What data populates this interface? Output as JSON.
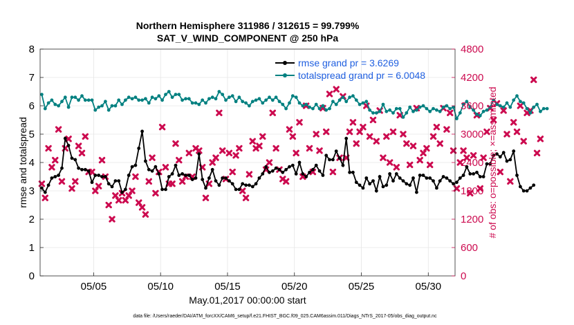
{
  "chart_data": {
    "type": "line",
    "title": "Northern Hemisphere 311986 / 312615 = 99.799%",
    "subtitle": "SAT_V_WIND_COMPONENT @ 250 hPa",
    "xlabel": "May.01,2017 00:00:00 start",
    "ylabel": "rmse and totalspread",
    "ylabel_right": "# of obs: o=possible; ×=assimilated",
    "ylim": [
      0,
      8
    ],
    "ylim_right": [
      0,
      4800
    ],
    "xlim": [
      1,
      32
    ],
    "x_ticks": [
      5,
      10,
      15,
      20,
      25,
      30
    ],
    "x_tick_labels": [
      "05/05",
      "05/10",
      "05/15",
      "05/20",
      "05/25",
      "05/30"
    ],
    "y_ticks": [
      0,
      1,
      2,
      3,
      4,
      5,
      6,
      7,
      8
    ],
    "y_ticks_right": [
      0,
      600,
      1200,
      1800,
      2400,
      3000,
      3600,
      4200,
      4800
    ],
    "grid": true,
    "legend_position": "top-right",
    "series": [
      {
        "name": "rmse grand pr = 3.6269",
        "color": "#000000",
        "axis": "left",
        "x0": 1.125,
        "dx": 0.25,
        "values": [
          3.1,
          2.95,
          3.2,
          3.45,
          3.5,
          3.55,
          3.8,
          4.85,
          4.6,
          4.15,
          4.1,
          3.8,
          3.75,
          3.75,
          3.7,
          3.3,
          3.55,
          3.55,
          3.5,
          3.5,
          3.25,
          3.15,
          3.35,
          3.35,
          2.95,
          3.05,
          3.55,
          3.85,
          3.9,
          4.5,
          5.1,
          4.05,
          3.75,
          3.7,
          3.85,
          3.6,
          3.05,
          3.05,
          3.5,
          3.6,
          3.9,
          3.55,
          3.6,
          3.55,
          3.55,
          3.4,
          3.45,
          4.3,
          3.4,
          3.1,
          3.45,
          3.75,
          3.35,
          3.2,
          3.45,
          3.45,
          3.35,
          3.25,
          3.05,
          3.05,
          3.25,
          3.2,
          3.2,
          3.15,
          3.25,
          3.45,
          3.6,
          3.85,
          3.65,
          3.7,
          3.8,
          3.75,
          3.65,
          3.75,
          3.85,
          3.9,
          3.6,
          4.0,
          3.6,
          3.5,
          3.65,
          3.75,
          3.9,
          3.7,
          3.55,
          4.25,
          4.1,
          4.1,
          4.4,
          4.15,
          3.9,
          4.85,
          3.65,
          3.65,
          3.3,
          3.2,
          3.1,
          3.45,
          3.25,
          3.35,
          3.0,
          3.5,
          3.15,
          3.2,
          3.6,
          3.35,
          3.6,
          3.45,
          3.35,
          3.25,
          3.2,
          3.45,
          2.95,
          3.55,
          3.55,
          3.45,
          3.45,
          3.35,
          3.1,
          3.35,
          3.5,
          3.45,
          3.35,
          3.25,
          3.3,
          3.45,
          3.55,
          3.85,
          3.6,
          3.6,
          3.65,
          3.5,
          3.5,
          3.95,
          3.95,
          4.25,
          4.3,
          4.2,
          4.35,
          4.05,
          4.1,
          4.4,
          3.55,
          3.15,
          3.0,
          3.0,
          3.1,
          3.2
        ]
      },
      {
        "name": "totalspread grand pr = 6.0048",
        "color": "#008080",
        "axis": "left",
        "x0": 1.125,
        "dx": 0.25,
        "values": [
          6.4,
          5.9,
          6.1,
          6.2,
          6.05,
          6.0,
          6.15,
          6.3,
          5.95,
          6.3,
          6.3,
          6.2,
          6.35,
          6.2,
          6.2,
          6.2,
          5.85,
          5.95,
          6.0,
          6.15,
          5.85,
          6.0,
          6.0,
          6.2,
          6.05,
          6.2,
          6.3,
          6.25,
          6.3,
          6.2,
          6.2,
          6.25,
          6.1,
          6.3,
          6.25,
          6.35,
          6.2,
          6.4,
          6.5,
          6.3,
          6.4,
          6.4,
          6.2,
          6.25,
          6.25,
          6.1,
          6.1,
          6.05,
          6.2,
          6.1,
          6.25,
          6.3,
          6.25,
          6.5,
          6.4,
          6.2,
          6.3,
          6.35,
          6.15,
          6.3,
          6.15,
          6.1,
          6.0,
          6.15,
          6.2,
          6.25,
          6.1,
          6.2,
          6.3,
          6.2,
          6.3,
          6.15,
          6.05,
          5.9,
          6.1,
          6.35,
          6.3,
          6.1,
          6.0,
          6.05,
          5.95,
          5.9,
          6.05,
          5.9,
          6.0,
          5.85,
          5.9,
          6.15,
          6.05,
          6.2,
          6.3,
          6.15,
          6.3,
          6.35,
          6.2,
          6.05,
          6.1,
          6.15,
          5.85,
          5.75,
          5.75,
          5.8,
          6.05,
          5.8,
          5.85,
          5.75,
          5.9,
          5.9,
          5.6,
          5.75,
          5.95,
          5.8,
          5.85,
          5.95,
          6.0,
          5.9,
          5.8,
          5.9,
          5.85,
          5.8,
          5.95,
          6.0,
          5.9,
          5.95,
          5.55,
          5.75,
          6.05,
          6.15,
          5.95,
          5.85,
          5.7,
          5.65,
          5.8,
          5.85,
          5.95,
          6.2,
          6.05,
          6.0,
          5.95,
          6.1,
          5.95,
          6.2,
          6.35,
          6.15,
          6.1,
          5.9,
          5.75,
          5.95,
          6.05,
          5.8,
          5.9,
          5.9
        ]
      },
      {
        "name": "obs possible / assimilated",
        "color": "#cc0a4f",
        "axis": "right",
        "marker": "cross",
        "x0": 1.125,
        "dx": 0.25,
        "values": [
          1950,
          1650,
          2700,
          2300,
          2450,
          3100,
          2000,
          2700,
          2900,
          1850,
          2000,
          2750,
          2600,
          2950,
          2200,
          2200,
          1800,
          1900,
          2450,
          2100,
          1500,
          1200,
          1700,
          1600,
          1750,
          1600,
          1700,
          1800,
          2100,
          1550,
          1450,
          1300,
          2000,
          2500,
          1750,
          2200,
          3150,
          2300,
          1950,
          1950,
          2800,
          2450,
          2000,
          2100,
          2600,
          2100,
          2700,
          2650,
          2300,
          1650,
          1950,
          2400,
          2500,
          3450,
          2650,
          2050,
          2600,
          2200,
          2550,
          2700,
          1800,
          1650,
          2150,
          2850,
          2700,
          2750,
          2950,
          2250,
          2400,
          3450,
          2700,
          2250,
          2050,
          2000,
          3100,
          2950,
          2600,
          3250,
          2100,
          3600,
          2700,
          2200,
          3000,
          2650,
          3550,
          3050,
          3850,
          2200,
          3950,
          2500,
          3800,
          2500,
          3050,
          3250,
          2800,
          3050,
          3150,
          3600,
          2950,
          3300,
          2850,
          3500,
          2500,
          2950,
          2400,
          3050,
          2300,
          3400,
          3000,
          2800,
          2350,
          2750,
          3550,
          2450,
          2600,
          2700,
          2350,
          2950,
          3150,
          2800,
          3550,
          3100,
          3450,
          2650,
          1850,
          2400,
          2650,
          2500,
          1750,
          2550,
          3400,
          1850,
          2500,
          3050,
          3550,
          3300,
          3650,
          2200,
          3500,
          3000,
          2000,
          3250,
          3050,
          3600,
          2850,
          3450,
          3500,
          4150,
          2600,
          2900
        ]
      }
    ]
  },
  "footer_text": "data file: /Users/raeder/DAI/ATM_forcXX/CAM6_setup/f.e21.FHIST_BGC.f09_025.CAM6assim.011/Diags_NTrS_2017-05/obs_diag_output.nc"
}
